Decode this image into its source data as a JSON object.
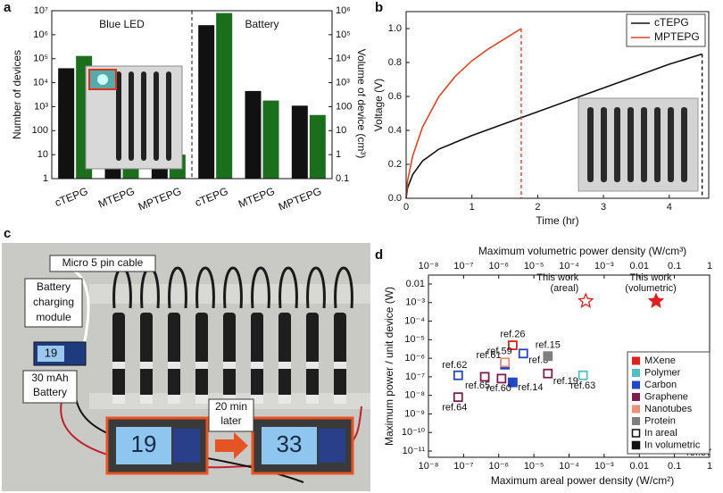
{
  "chart_data": [
    {
      "panel": "a",
      "type": "bar",
      "categories": [
        "cTEPG",
        "MTEPG",
        "MPTEPG",
        "cTEPG",
        "MTEPG",
        "MPTEPG"
      ],
      "group_labels": [
        "Blue LED",
        "Battery"
      ],
      "ylabel": "Number of devices",
      "y2label": "Volume of device (cm³)",
      "log_y": true,
      "ylim": [
        1,
        10000000
      ],
      "yticks": [
        1,
        10,
        100,
        {
          "value": 1000,
          "label": "10³"
        },
        {
          "value": 10000,
          "label": "10⁴"
        },
        {
          "value": 100000,
          "label": "10⁵"
        },
        {
          "value": 1000000,
          "label": "10⁶"
        },
        {
          "value": 10000000,
          "label": "10⁷"
        }
      ],
      "y2lim": [
        0.1,
        1000000
      ],
      "y2ticks": [
        0.1,
        1,
        10,
        100,
        {
          "value": 1000,
          "label": "10³"
        },
        {
          "value": 10000,
          "label": "10⁴"
        },
        {
          "value": 100000,
          "label": "10⁵"
        },
        {
          "value": 1000000,
          "label": "10⁶"
        }
      ],
      "series": [
        {
          "color": "#111111",
          "values": [
            40000,
            70,
            25,
            2500000,
            4500,
            1100
          ]
        },
        {
          "color": "#1b6e1b",
          "axis": "y2",
          "values": [
            13000,
            3,
            1,
            800000,
            180,
            45
          ]
        }
      ]
    },
    {
      "panel": "b",
      "type": "line",
      "xlabel": "Time (hr)",
      "ylabel": "Voltage (V)",
      "xlim": [
        0,
        4.6
      ],
      "xticks": [
        0,
        1,
        2,
        3,
        4
      ],
      "ylim": [
        0,
        1.1
      ],
      "yticks": [
        {
          "value": 0,
          "label": "0.0"
        },
        0.2,
        0.4,
        0.6,
        0.8,
        {
          "value": 1,
          "label": "1.0"
        }
      ],
      "legend": "upper right",
      "series": [
        {
          "name": "cTEPG",
          "color": "#111111",
          "x": [
            0,
            0.02,
            0.1,
            0.25,
            0.5,
            0.75,
            1,
            1.5,
            2,
            2.5,
            3,
            3.5,
            4,
            4.5
          ],
          "values": [
            0,
            0.06,
            0.14,
            0.22,
            0.29,
            0.33,
            0.37,
            0.44,
            0.51,
            0.58,
            0.65,
            0.72,
            0.79,
            0.85
          ]
        },
        {
          "name": "MPTEPG",
          "color": "#e0452a",
          "x": [
            0,
            0.02,
            0.1,
            0.25,
            0.5,
            0.75,
            1,
            1.25,
            1.5,
            1.75
          ],
          "values": [
            0,
            0.1,
            0.25,
            0.42,
            0.6,
            0.72,
            0.81,
            0.88,
            0.94,
            1.0
          ]
        }
      ]
    },
    {
      "panel": "d",
      "type": "scatter",
      "xlabel": "Maximum areal power density (W/cm²)",
      "x2label": "Maximum volumetric power density (W/cm³)",
      "ylabel": "Maximum power / unit device (W)",
      "log_x": true,
      "log_y": true,
      "xlim": [
        1e-08,
        1
      ],
      "xticks": [
        {
          "value": 1e-08,
          "label": "10⁻⁸"
        },
        {
          "value": 1e-07,
          "label": "10⁻⁷"
        },
        {
          "value": 1e-06,
          "label": "10⁻⁶"
        },
        {
          "value": 1e-05,
          "label": "10⁻⁵"
        },
        {
          "value": 0.0001,
          "label": "10⁻⁴"
        },
        {
          "value": 0.001,
          "label": "10⁻³"
        },
        0.01,
        0.1,
        1
      ],
      "x2lim": [
        1e-08,
        1
      ],
      "x2ticks": [
        {
          "value": 1e-08,
          "label": "10⁻⁸"
        },
        {
          "value": 1e-07,
          "label": "10⁻⁷"
        },
        {
          "value": 1e-06,
          "label": "10⁻⁶"
        },
        {
          "value": 1e-05,
          "label": "10⁻⁵"
        },
        {
          "value": 0.0001,
          "label": "10⁻⁴"
        },
        {
          "value": 0.001,
          "label": "10⁻³"
        },
        0.01,
        0.1,
        1
      ],
      "ylim": [
        1e-11,
        0.01
      ],
      "yticks": [
        0.01,
        {
          "value": 0.001,
          "label": "10⁻³"
        },
        {
          "value": 0.0001,
          "label": "10⁻⁴"
        },
        {
          "value": 1e-05,
          "label": "10⁻⁵"
        },
        {
          "value": 1e-06,
          "label": "10⁻⁶"
        },
        {
          "value": 1e-07,
          "label": "10⁻⁷"
        },
        {
          "value": 1e-08,
          "label": "10⁻⁸"
        },
        {
          "value": 1e-09,
          "label": "10⁻⁹"
        },
        {
          "value": 1e-10,
          "label": "10⁻¹⁰"
        },
        {
          "value": 1e-11,
          "label": "10⁻¹¹"
        }
      ],
      "legend": "lower right",
      "marker_legend": [
        "In areal",
        "In volumetric"
      ],
      "series": [
        {
          "name": "MXene",
          "color": "#e0201e",
          "x": [
            0.0003,
            0.03,
            2.5e-06
          ],
          "values": [
            0.0012,
            0.0012,
            5e-06
          ],
          "markers": [
            "star-open",
            "star-filled",
            "open"
          ],
          "labels": [
            [
              "This work",
              "(areal)"
            ],
            [
              "This work",
              "(volumetric)"
            ],
            [
              "ref.26"
            ]
          ]
        },
        {
          "name": "Polymer",
          "color": "#4fbfc4",
          "x": [
            0.00025
          ],
          "values": [
            1.2e-07
          ],
          "markers": [
            "open"
          ],
          "labels": [
            [
              "ref.63"
            ]
          ]
        },
        {
          "name": "Carbon",
          "color": "#2146c7",
          "x": [
            7e-08,
            1.5e-06,
            5e-06,
            2.5e-06
          ],
          "values": [
            1.2e-07,
            4.5e-07,
            1.8e-06,
            5e-08
          ],
          "markers": [
            "open",
            "filled",
            "open",
            "filled"
          ],
          "labels": [
            [
              "ref.62"
            ],
            [
              "ref.61"
            ],
            [
              "ref.3"
            ],
            [
              "ref.14"
            ]
          ]
        },
        {
          "name": "Graphene",
          "color": "#7d1e4f",
          "x": [
            4e-07,
            1.2e-06,
            2.5e-05,
            7e-08
          ],
          "values": [
            1e-07,
            8e-08,
            1.5e-07,
            8e-09
          ],
          "markers": [
            "open",
            "open",
            "open",
            "open"
          ],
          "labels": [
            [
              "ref.65"
            ],
            [
              "ref.60"
            ],
            [
              "ref.19"
            ],
            [
              "ref.64"
            ]
          ]
        },
        {
          "name": "Nanotubes",
          "color": "#e8907a",
          "x": [
            1.5e-06,
            0.5
          ],
          "values": [
            6e-07,
            3e-11
          ],
          "markers": [
            "open",
            "open"
          ],
          "labels": [
            [
              "ref.59"
            ],
            [
              "ref.57"
            ]
          ]
        },
        {
          "name": "Protein",
          "color": "#7f7f7f",
          "x": [
            2.5e-05
          ],
          "values": [
            1.3e-06
          ],
          "markers": [
            "filled"
          ],
          "labels": [
            [
              "ref.15"
            ]
          ]
        }
      ]
    }
  ],
  "photo": {
    "panel": "c",
    "cable": "Micro 5 pin cable",
    "module": [
      "Battery",
      "charging",
      "module"
    ],
    "battery": [
      "30 mAh",
      "Battery"
    ],
    "later": [
      "20 min",
      "later"
    ],
    "displays": [
      "19",
      "19",
      "33"
    ]
  }
}
